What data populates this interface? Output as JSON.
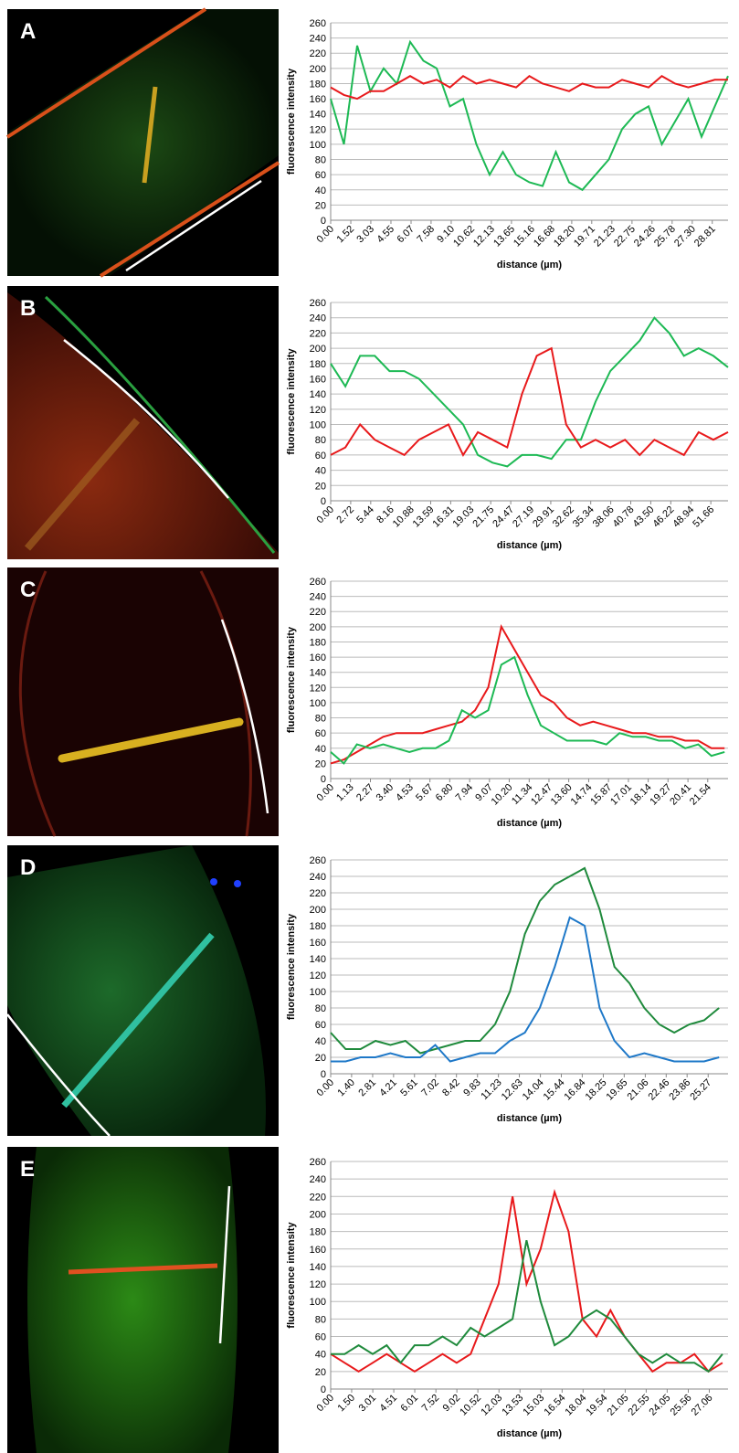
{
  "chart_data": [
    {
      "type": "line",
      "label": "A",
      "xlabel": "distance (µm)",
      "ylabel": "fluorescence intensity",
      "grid": true,
      "x": [
        0,
        1,
        2,
        3,
        4,
        5,
        6,
        7,
        8,
        9,
        10,
        11,
        12,
        13,
        14,
        15,
        16,
        17,
        18,
        19,
        20,
        21,
        22,
        23,
        24,
        25,
        26,
        27,
        28,
        29,
        30
      ],
      "xlim": [
        0,
        30
      ],
      "xticks": [
        {
          "value": 0,
          "label": "0.00"
        },
        1.52,
        3.03,
        4.55,
        6.07,
        7.58,
        {
          "value": 9.1,
          "label": "9.10"
        },
        10.62,
        12.13,
        13.65,
        15.16,
        16.68,
        {
          "value": 18.2,
          "label": "18.20"
        },
        19.71,
        21.23,
        22.75,
        24.26,
        25.78,
        {
          "value": 27.3,
          "label": "27.30"
        },
        28.81
      ],
      "ylim": [
        0,
        260
      ],
      "yticks": [
        0,
        20,
        40,
        60,
        80,
        100,
        120,
        140,
        160,
        180,
        200,
        220,
        240,
        260
      ],
      "series": [
        {
          "color": "#1db954",
          "values": [
            160,
            100,
            230,
            170,
            200,
            180,
            235,
            210,
            200,
            150,
            160,
            100,
            60,
            90,
            60,
            50,
            45,
            90,
            50,
            40,
            60,
            80,
            120,
            140,
            150,
            100,
            130,
            160,
            110,
            150,
            190
          ]
        },
        {
          "color": "#e8191b",
          "values": [
            175,
            165,
            160,
            170,
            170,
            180,
            190,
            180,
            185,
            175,
            190,
            180,
            185,
            180,
            175,
            190,
            180,
            175,
            170,
            180,
            175,
            175,
            185,
            180,
            175,
            190,
            180,
            175,
            180,
            185,
            185
          ]
        }
      ]
    },
    {
      "type": "line",
      "label": "B",
      "xlabel": "distance (µm)",
      "ylabel": "fluorescence intensity",
      "grid": true,
      "x": [
        0,
        2,
        4,
        6,
        8,
        10,
        12,
        14,
        16,
        18,
        20,
        22,
        24,
        26,
        28,
        30,
        32,
        34,
        36,
        38,
        40,
        42,
        44,
        46,
        48,
        50,
        52,
        54
      ],
      "xlim": [
        0,
        54
      ],
      "xticks": [
        {
          "value": 0,
          "label": "0.00"
        },
        2.72,
        5.44,
        8.16,
        10.88,
        13.59,
        16.31,
        19.03,
        21.75,
        24.47,
        27.19,
        29.91,
        32.62,
        35.34,
        38.06,
        40.78,
        {
          "value": 43.5,
          "label": "43.50"
        },
        46.22,
        48.94,
        51.66
      ],
      "ylim": [
        0,
        260
      ],
      "yticks": [
        0,
        20,
        40,
        60,
        80,
        100,
        120,
        140,
        160,
        180,
        200,
        220,
        240,
        260
      ],
      "series": [
        {
          "color": "#1db954",
          "values": [
            180,
            150,
            190,
            190,
            170,
            170,
            160,
            140,
            120,
            100,
            60,
            50,
            45,
            60,
            60,
            55,
            80,
            80,
            130,
            170,
            190,
            210,
            240,
            220,
            190,
            200,
            190,
            175
          ]
        },
        {
          "color": "#e8191b",
          "values": [
            60,
            70,
            100,
            80,
            70,
            60,
            80,
            90,
            100,
            60,
            90,
            80,
            70,
            140,
            190,
            200,
            100,
            70,
            80,
            70,
            80,
            60,
            80,
            70,
            60,
            90,
            80,
            90
          ]
        }
      ]
    },
    {
      "type": "line",
      "label": "C",
      "xlabel": "distance (µm)",
      "ylabel": "fluorescence intensity",
      "grid": true,
      "x": [
        0,
        0.75,
        1.5,
        2.25,
        3,
        3.75,
        4.5,
        5.25,
        6,
        6.75,
        7.5,
        8.25,
        9,
        9.75,
        10.5,
        11.25,
        12,
        12.75,
        13.5,
        14.25,
        15,
        15.75,
        16.5,
        17.25,
        18,
        18.75,
        19.5,
        20.25,
        21,
        21.75,
        22.5
      ],
      "xlim": [
        0,
        22.7
      ],
      "xticks": [
        {
          "value": 0,
          "label": "0.00"
        },
        1.13,
        2.27,
        {
          "value": 3.4,
          "label": "3.40"
        },
        4.53,
        5.67,
        {
          "value": 6.8,
          "label": "6.80"
        },
        7.94,
        9.07,
        {
          "value": 10.2,
          "label": "10.20"
        },
        11.34,
        12.47,
        {
          "value": 13.6,
          "label": "13.60"
        },
        14.74,
        15.87,
        17.01,
        18.14,
        19.27,
        20.41,
        21.54
      ],
      "ylim": [
        0,
        260
      ],
      "yticks": [
        0,
        20,
        40,
        60,
        80,
        100,
        120,
        140,
        160,
        180,
        200,
        220,
        240,
        260
      ],
      "series": [
        {
          "color": "#e8191b",
          "values": [
            20,
            25,
            35,
            45,
            55,
            60,
            60,
            60,
            65,
            70,
            75,
            90,
            120,
            200,
            170,
            140,
            110,
            100,
            80,
            70,
            75,
            70,
            65,
            60,
            60,
            55,
            55,
            50,
            50,
            40,
            40
          ]
        },
        {
          "color": "#1db954",
          "values": [
            35,
            20,
            45,
            40,
            45,
            40,
            35,
            40,
            40,
            50,
            90,
            80,
            90,
            150,
            160,
            110,
            70,
            60,
            50,
            50,
            50,
            45,
            60,
            55,
            55,
            50,
            50,
            40,
            45,
            30,
            35
          ]
        }
      ]
    },
    {
      "type": "line",
      "label": "D",
      "xlabel": "distance (µm)",
      "ylabel": "fluorescence intensity",
      "grid": true,
      "x": [
        0,
        1,
        2,
        3,
        4,
        5,
        6,
        7,
        8,
        9,
        10,
        11,
        12,
        13,
        14,
        15,
        16,
        17,
        18,
        19,
        20,
        21,
        22,
        23,
        24,
        25,
        26
      ],
      "xlim": [
        0,
        26.6
      ],
      "xticks": [
        {
          "value": 0,
          "label": "0.00"
        },
        {
          "value": 1.4,
          "label": "1.40"
        },
        2.81,
        4.21,
        5.61,
        7.02,
        8.42,
        9.83,
        11.23,
        12.63,
        14.04,
        15.44,
        16.84,
        18.25,
        19.65,
        21.06,
        22.46,
        23.86,
        25.27
      ],
      "ylim": [
        0,
        260
      ],
      "yticks": [
        0,
        20,
        40,
        60,
        80,
        100,
        120,
        140,
        160,
        180,
        200,
        220,
        240,
        260
      ],
      "series": [
        {
          "color": "#1f8a3c",
          "values": [
            50,
            30,
            30,
            40,
            35,
            40,
            25,
            30,
            35,
            40,
            40,
            60,
            100,
            170,
            210,
            230,
            240,
            250,
            200,
            130,
            110,
            80,
            60,
            50,
            60,
            65,
            80
          ]
        },
        {
          "color": "#1e78c8",
          "values": [
            15,
            15,
            20,
            20,
            25,
            20,
            20,
            35,
            15,
            20,
            25,
            25,
            40,
            50,
            80,
            130,
            190,
            180,
            80,
            40,
            20,
            25,
            20,
            15,
            15,
            15,
            20
          ]
        }
      ]
    },
    {
      "type": "line",
      "label": "E",
      "xlabel": "distance (µm)",
      "ylabel": "fluorescence intensity",
      "grid": true,
      "x": [
        0,
        1,
        2,
        3,
        4,
        5,
        6,
        7,
        8,
        9,
        10,
        11,
        12,
        13,
        14,
        15,
        16,
        17,
        18,
        19,
        20,
        21,
        22,
        23,
        24,
        25,
        26,
        27,
        28
      ],
      "xlim": [
        0,
        28.4
      ],
      "xticks": [
        {
          "value": 0,
          "label": "0.00"
        },
        {
          "value": 1.5,
          "label": "1.50"
        },
        3.01,
        4.51,
        6.01,
        7.52,
        9.02,
        10.52,
        12.03,
        13.53,
        15.03,
        16.54,
        18.04,
        19.54,
        21.05,
        22.55,
        24.05,
        25.56,
        27.06
      ],
      "ylim": [
        0,
        260
      ],
      "yticks": [
        0,
        20,
        40,
        60,
        80,
        100,
        120,
        140,
        160,
        180,
        200,
        220,
        240,
        260
      ],
      "series": [
        {
          "color": "#e8191b",
          "values": [
            40,
            30,
            20,
            30,
            40,
            30,
            20,
            30,
            40,
            30,
            40,
            80,
            120,
            220,
            120,
            160,
            225,
            180,
            80,
            60,
            90,
            60,
            40,
            20,
            30,
            30,
            40,
            20,
            30
          ]
        },
        {
          "color": "#1f8a3c",
          "values": [
            40,
            40,
            50,
            40,
            50,
            30,
            50,
            50,
            60,
            50,
            70,
            60,
            70,
            80,
            170,
            100,
            50,
            60,
            80,
            90,
            80,
            60,
            40,
            30,
            40,
            30,
            30,
            20,
            40
          ]
        }
      ]
    }
  ]
}
